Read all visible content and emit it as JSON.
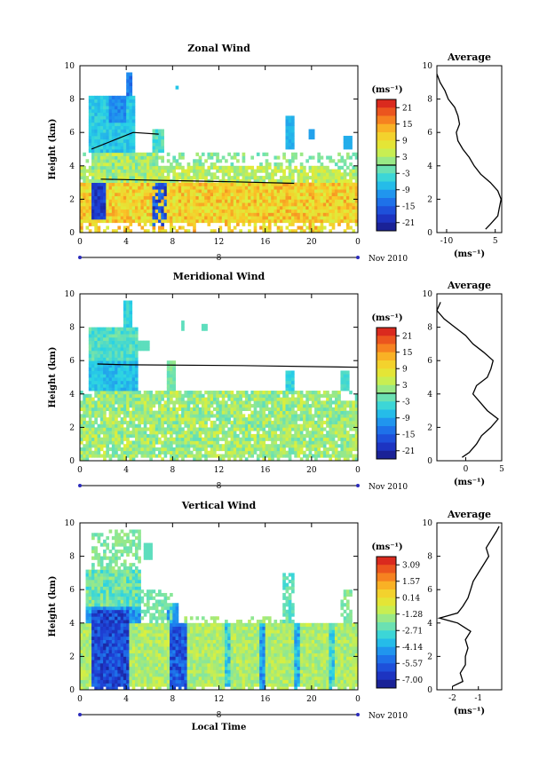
{
  "chart_data": [
    {
      "type": "heatmap",
      "title": "Zonal Wind",
      "ylabel": "Height (km)",
      "x_ticks": [
        "0",
        "4",
        "8",
        "12",
        "16",
        "20",
        "0"
      ],
      "y_ticks": [
        "0",
        "2",
        "4",
        "6",
        "8",
        "10"
      ],
      "date_marker": "8",
      "date_label": "Nov 2010",
      "colorbar": {
        "unit": "(ms⁻¹)",
        "ticks": [
          "21",
          "15",
          "9",
          "3",
          "-3",
          "-9",
          "-15",
          "-21"
        ],
        "range": [
          -24,
          24
        ]
      },
      "xlim": [
        0,
        24
      ],
      "ylim": [
        0,
        10
      ],
      "boundary_lines": [
        {
          "x": [
            1.0,
            4.6,
            6.8
          ],
          "y": [
            5.0,
            6.0,
            5.9
          ]
        },
        {
          "x": [
            1.8,
            13.0,
            18.5
          ],
          "y": [
            3.2,
            3.05,
            2.95
          ]
        }
      ],
      "average": {
        "title": "Average",
        "unit": "(ms⁻¹)",
        "xticks": [
          "-10",
          "5"
        ],
        "xlim": [
          -13,
          7
        ],
        "y": [
          0.2,
          0.5,
          1.0,
          1.5,
          2.0,
          2.5,
          3.0,
          3.5,
          4.0,
          4.5,
          5.0,
          5.5,
          6.0,
          6.5,
          7.0,
          7.5,
          8.0,
          8.5,
          9.0,
          9.5
        ],
        "values": [
          2.0,
          3.5,
          5.8,
          6.3,
          6.8,
          5.8,
          3.5,
          0.5,
          -1.5,
          -3.0,
          -5.0,
          -6.5,
          -7.0,
          -6.0,
          -6.5,
          -7.5,
          -9.5,
          -10.5,
          -12.0,
          -13.0
        ]
      }
    },
    {
      "type": "heatmap",
      "title": "Meridional Wind",
      "ylabel": "Height (km)",
      "x_ticks": [
        "0",
        "4",
        "8",
        "12",
        "16",
        "20",
        "0"
      ],
      "y_ticks": [
        "0",
        "2",
        "4",
        "6",
        "8",
        "10"
      ],
      "date_marker": "8",
      "date_label": "Nov 2010",
      "colorbar": {
        "unit": "(ms⁻¹)",
        "ticks": [
          "21",
          "15",
          "9",
          "3",
          "-3",
          "-9",
          "-15",
          "-21"
        ],
        "range": [
          -24,
          24
        ]
      },
      "xlim": [
        0,
        24
      ],
      "ylim": [
        0,
        10
      ],
      "boundary_lines": [
        {
          "x": [
            1.5,
            4.0,
            14.0,
            24.0
          ],
          "y": [
            5.8,
            5.75,
            5.7,
            5.6
          ]
        }
      ],
      "average": {
        "title": "Average",
        "unit": "(ms⁻¹)",
        "xticks": [
          "0",
          "5"
        ],
        "xlim": [
          -4,
          5
        ],
        "y": [
          0.2,
          0.5,
          1.0,
          1.5,
          2.0,
          2.5,
          3.0,
          3.5,
          4.0,
          4.5,
          5.0,
          5.5,
          6.0,
          6.5,
          7.0,
          7.5,
          8.0,
          8.5,
          9.0,
          9.5
        ],
        "values": [
          -0.5,
          0.5,
          1.5,
          2.2,
          3.5,
          4.5,
          3.0,
          2.0,
          1.0,
          1.5,
          3.0,
          3.5,
          3.8,
          2.5,
          1.0,
          0.0,
          -1.5,
          -3.0,
          -4.0,
          -3.5
        ]
      }
    },
    {
      "type": "heatmap",
      "title": "Vertical Wind",
      "xlabel": "Local Time",
      "ylabel": "Height (km)",
      "x_ticks": [
        "0",
        "4",
        "8",
        "12",
        "16",
        "20",
        "0"
      ],
      "y_ticks": [
        "0",
        "2",
        "4",
        "6",
        "8",
        "10"
      ],
      "date_marker": "8",
      "date_label": "Nov 2010",
      "colorbar": {
        "unit": "(ms⁻¹)",
        "ticks": [
          "3.09",
          "1.57",
          "0.14",
          "-1.28",
          "-2.71",
          "-4.14",
          "-5.57",
          "-7.00"
        ],
        "range": [
          -7.7,
          3.8
        ]
      },
      "xlim": [
        0,
        24
      ],
      "ylim": [
        0,
        10
      ],
      "average": {
        "title": "Average",
        "unit": "(ms⁻¹)",
        "xticks": [
          "-2",
          "-1"
        ],
        "xlim": [
          -2.6,
          -0.1
        ],
        "y": [
          0.2,
          0.5,
          1.0,
          1.5,
          2.0,
          2.5,
          3.0,
          3.5,
          4.0,
          4.3,
          4.6,
          5.0,
          5.5,
          6.0,
          6.5,
          7.0,
          7.5,
          8.0,
          8.5,
          9.0,
          9.5,
          9.8
        ],
        "values": [
          -2.0,
          -1.6,
          -1.7,
          -1.5,
          -1.5,
          -1.4,
          -1.5,
          -1.3,
          -1.8,
          -2.5,
          -1.8,
          -1.6,
          -1.4,
          -1.3,
          -1.2,
          -1.0,
          -0.8,
          -0.6,
          -0.7,
          -0.5,
          -0.3,
          -0.2
        ]
      }
    }
  ]
}
